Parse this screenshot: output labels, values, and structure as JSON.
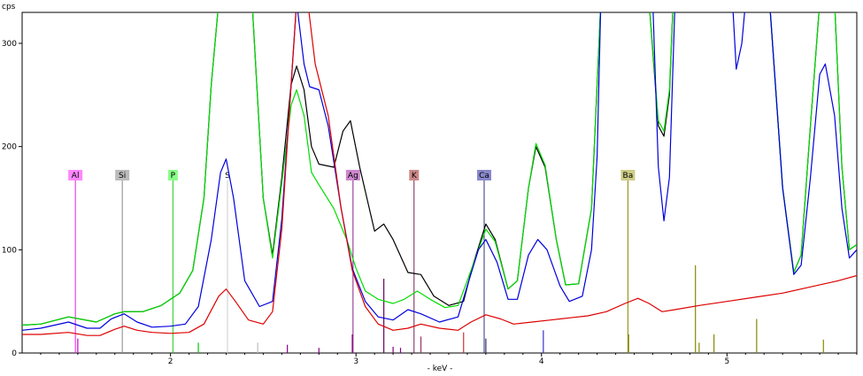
{
  "chart_data": {
    "type": "line",
    "ylabel": "cps",
    "xlabel": "- keV -",
    "xlim": [
      1.2,
      5.7
    ],
    "ylim": [
      0,
      330
    ],
    "x_ticks": [
      2,
      3,
      4,
      5
    ],
    "y_ticks": [
      0,
      100,
      200,
      300
    ],
    "grid": false,
    "series": [
      {
        "color": "#000000",
        "points": [
          [
            1.2,
            27
          ],
          [
            1.3,
            28
          ],
          [
            1.45,
            35
          ],
          [
            1.6,
            30
          ],
          [
            1.7,
            38
          ],
          [
            1.75,
            40
          ],
          [
            1.85,
            40
          ],
          [
            1.95,
            46
          ],
          [
            2.05,
            58
          ],
          [
            2.12,
            80
          ],
          [
            2.18,
            150
          ],
          [
            2.22,
            260
          ],
          [
            2.26,
            340
          ],
          [
            2.44,
            340
          ],
          [
            2.5,
            150
          ],
          [
            2.55,
            95
          ],
          [
            2.6,
            170
          ],
          [
            2.65,
            260
          ],
          [
            2.68,
            278
          ],
          [
            2.72,
            255
          ],
          [
            2.76,
            200
          ],
          [
            2.8,
            183
          ],
          [
            2.88,
            180
          ],
          [
            2.93,
            215
          ],
          [
            2.97,
            225
          ],
          [
            3.02,
            180
          ],
          [
            3.1,
            118
          ],
          [
            3.15,
            125
          ],
          [
            3.2,
            110
          ],
          [
            3.28,
            78
          ],
          [
            3.35,
            76
          ],
          [
            3.42,
            55
          ],
          [
            3.5,
            46
          ],
          [
            3.58,
            50
          ],
          [
            3.63,
            85
          ],
          [
            3.7,
            125
          ],
          [
            3.75,
            110
          ],
          [
            3.82,
            62
          ],
          [
            3.87,
            70
          ],
          [
            3.93,
            160
          ],
          [
            3.97,
            200
          ],
          [
            4.02,
            180
          ],
          [
            4.08,
            110
          ],
          [
            4.13,
            66
          ],
          [
            4.2,
            67
          ],
          [
            4.27,
            140
          ],
          [
            4.3,
            260
          ],
          [
            4.32,
            340
          ],
          [
            4.58,
            340
          ],
          [
            4.63,
            220
          ],
          [
            4.66,
            210
          ],
          [
            4.69,
            250
          ],
          [
            4.71,
            340
          ],
          [
            5.23,
            340
          ],
          [
            5.3,
            160
          ],
          [
            5.36,
            78
          ],
          [
            5.4,
            95
          ],
          [
            5.45,
            220
          ],
          [
            5.5,
            340
          ],
          [
            5.58,
            340
          ],
          [
            5.62,
            180
          ],
          [
            5.66,
            100
          ],
          [
            5.7,
            105
          ]
        ]
      },
      {
        "color": "#00dd00",
        "points": [
          [
            1.2,
            27
          ],
          [
            1.3,
            28
          ],
          [
            1.45,
            35
          ],
          [
            1.6,
            30
          ],
          [
            1.7,
            38
          ],
          [
            1.75,
            40
          ],
          [
            1.85,
            40
          ],
          [
            1.95,
            46
          ],
          [
            2.05,
            58
          ],
          [
            2.12,
            80
          ],
          [
            2.18,
            150
          ],
          [
            2.22,
            260
          ],
          [
            2.26,
            340
          ],
          [
            2.44,
            340
          ],
          [
            2.5,
            150
          ],
          [
            2.55,
            92
          ],
          [
            2.6,
            165
          ],
          [
            2.65,
            240
          ],
          [
            2.68,
            255
          ],
          [
            2.72,
            230
          ],
          [
            2.76,
            175
          ],
          [
            2.8,
            163
          ],
          [
            2.88,
            140
          ],
          [
            2.95,
            110
          ],
          [
            3.0,
            82
          ],
          [
            3.05,
            60
          ],
          [
            3.12,
            52
          ],
          [
            3.2,
            48
          ],
          [
            3.26,
            52
          ],
          [
            3.33,
            60
          ],
          [
            3.4,
            52
          ],
          [
            3.48,
            44
          ],
          [
            3.55,
            46
          ],
          [
            3.6,
            70
          ],
          [
            3.66,
            100
          ],
          [
            3.7,
            120
          ],
          [
            3.75,
            108
          ],
          [
            3.82,
            62
          ],
          [
            3.87,
            70
          ],
          [
            3.93,
            160
          ],
          [
            3.97,
            203
          ],
          [
            4.02,
            182
          ],
          [
            4.08,
            110
          ],
          [
            4.13,
            66
          ],
          [
            4.2,
            67
          ],
          [
            4.27,
            140
          ],
          [
            4.3,
            260
          ],
          [
            4.32,
            340
          ],
          [
            4.58,
            340
          ],
          [
            4.63,
            225
          ],
          [
            4.66,
            215
          ],
          [
            4.69,
            255
          ],
          [
            4.71,
            340
          ],
          [
            5.23,
            340
          ],
          [
            5.3,
            160
          ],
          [
            5.36,
            78
          ],
          [
            5.4,
            95
          ],
          [
            5.45,
            220
          ],
          [
            5.5,
            340
          ],
          [
            5.58,
            340
          ],
          [
            5.62,
            180
          ],
          [
            5.66,
            100
          ],
          [
            5.7,
            105
          ]
        ]
      },
      {
        "color": "#0000dd",
        "points": [
          [
            1.2,
            22
          ],
          [
            1.3,
            24
          ],
          [
            1.45,
            30
          ],
          [
            1.55,
            24
          ],
          [
            1.62,
            24
          ],
          [
            1.68,
            33
          ],
          [
            1.75,
            38
          ],
          [
            1.82,
            30
          ],
          [
            1.9,
            25
          ],
          [
            2.0,
            26
          ],
          [
            2.08,
            28
          ],
          [
            2.15,
            45
          ],
          [
            2.22,
            110
          ],
          [
            2.27,
            175
          ],
          [
            2.3,
            188
          ],
          [
            2.34,
            150
          ],
          [
            2.4,
            70
          ],
          [
            2.48,
            45
          ],
          [
            2.55,
            50
          ],
          [
            2.6,
            130
          ],
          [
            2.65,
            260
          ],
          [
            2.68,
            340
          ],
          [
            2.72,
            280
          ],
          [
            2.75,
            258
          ],
          [
            2.8,
            255
          ],
          [
            2.85,
            220
          ],
          [
            2.92,
            140
          ],
          [
            2.98,
            82
          ],
          [
            3.05,
            50
          ],
          [
            3.12,
            35
          ],
          [
            3.2,
            32
          ],
          [
            3.28,
            42
          ],
          [
            3.35,
            38
          ],
          [
            3.45,
            30
          ],
          [
            3.55,
            35
          ],
          [
            3.6,
            65
          ],
          [
            3.66,
            100
          ],
          [
            3.7,
            110
          ],
          [
            3.76,
            88
          ],
          [
            3.82,
            52
          ],
          [
            3.87,
            52
          ],
          [
            3.93,
            95
          ],
          [
            3.98,
            110
          ],
          [
            4.03,
            100
          ],
          [
            4.1,
            65
          ],
          [
            4.15,
            50
          ],
          [
            4.22,
            55
          ],
          [
            4.27,
            100
          ],
          [
            4.3,
            190
          ],
          [
            4.32,
            340
          ],
          [
            4.6,
            340
          ],
          [
            4.63,
            180
          ],
          [
            4.66,
            128
          ],
          [
            4.69,
            170
          ],
          [
            4.72,
            340
          ],
          [
            5.03,
            340
          ],
          [
            5.05,
            275
          ],
          [
            5.08,
            300
          ],
          [
            5.1,
            340
          ],
          [
            5.23,
            340
          ],
          [
            5.3,
            160
          ],
          [
            5.36,
            76
          ],
          [
            5.4,
            85
          ],
          [
            5.45,
            170
          ],
          [
            5.5,
            270
          ],
          [
            5.53,
            280
          ],
          [
            5.58,
            230
          ],
          [
            5.62,
            140
          ],
          [
            5.66,
            92
          ],
          [
            5.7,
            100
          ]
        ]
      },
      {
        "color": "#dd0000",
        "points": [
          [
            1.2,
            18
          ],
          [
            1.3,
            18
          ],
          [
            1.45,
            20
          ],
          [
            1.55,
            17
          ],
          [
            1.62,
            17
          ],
          [
            1.7,
            23
          ],
          [
            1.75,
            26
          ],
          [
            1.82,
            22
          ],
          [
            1.9,
            20
          ],
          [
            2.0,
            19
          ],
          [
            2.1,
            20
          ],
          [
            2.18,
            28
          ],
          [
            2.26,
            55
          ],
          [
            2.3,
            62
          ],
          [
            2.35,
            50
          ],
          [
            2.42,
            32
          ],
          [
            2.5,
            28
          ],
          [
            2.55,
            40
          ],
          [
            2.6,
            120
          ],
          [
            2.65,
            260
          ],
          [
            2.68,
            340
          ],
          [
            2.74,
            340
          ],
          [
            2.78,
            280
          ],
          [
            2.85,
            230
          ],
          [
            2.92,
            140
          ],
          [
            2.98,
            80
          ],
          [
            3.05,
            45
          ],
          [
            3.12,
            28
          ],
          [
            3.2,
            22
          ],
          [
            3.28,
            24
          ],
          [
            3.35,
            28
          ],
          [
            3.45,
            24
          ],
          [
            3.55,
            22
          ],
          [
            3.62,
            30
          ],
          [
            3.7,
            37
          ],
          [
            3.78,
            33
          ],
          [
            3.85,
            28
          ],
          [
            3.95,
            30
          ],
          [
            4.05,
            32
          ],
          [
            4.15,
            34
          ],
          [
            4.25,
            36
          ],
          [
            4.35,
            40
          ],
          [
            4.45,
            48
          ],
          [
            4.52,
            53
          ],
          [
            4.58,
            48
          ],
          [
            4.65,
            40
          ],
          [
            4.72,
            42
          ],
          [
            4.85,
            46
          ],
          [
            5.0,
            50
          ],
          [
            5.15,
            54
          ],
          [
            5.3,
            58
          ],
          [
            5.45,
            64
          ],
          [
            5.6,
            70
          ],
          [
            5.7,
            75
          ]
        ]
      }
    ],
    "element_markers": [
      {
        "element": "Al",
        "energy": 1.487,
        "color": "#dd22dd"
      },
      {
        "element": "Si",
        "energy": 1.74,
        "color": "#888888"
      },
      {
        "element": "P",
        "energy": 2.013,
        "color": "#22cc22"
      },
      {
        "element": "S",
        "energy": 2.307,
        "color": "#cccccc"
      },
      {
        "element": "Ag",
        "energy": 2.984,
        "color": "#882288"
      },
      {
        "element": "K",
        "energy": 3.313,
        "color": "#772255"
      },
      {
        "element": "Ca",
        "energy": 3.691,
        "color": "#333377"
      },
      {
        "element": "Ba",
        "energy": 4.466,
        "color": "#888800"
      }
    ],
    "label_colors": {
      "Al": "#ff88ff",
      "Si": "#bbbbbb",
      "P": "#88ff88",
      "S": "#ffffff",
      "Ag": "#cc88cc",
      "K": "#cc8888",
      "Ca": "#8888cc",
      "Ba": "#cccc88"
    },
    "marker_lines": [
      {
        "energy": 1.5,
        "height": 14,
        "color": "#cc00cc"
      },
      {
        "energy": 2.15,
        "height": 10,
        "color": "#00cc00"
      },
      {
        "energy": 2.47,
        "height": 10,
        "color": "#bbbbbb"
      },
      {
        "energy": 2.63,
        "height": 8,
        "color": "#880088"
      },
      {
        "energy": 2.8,
        "height": 5,
        "color": "#880088"
      },
      {
        "energy": 2.98,
        "height": 18,
        "color": "#880088"
      },
      {
        "energy": 3.15,
        "height": 72,
        "color": "#660066"
      },
      {
        "energy": 3.2,
        "height": 6,
        "color": "#880088"
      },
      {
        "energy": 3.24,
        "height": 5,
        "color": "#880088"
      },
      {
        "energy": 3.35,
        "height": 16,
        "color": "#993366"
      },
      {
        "energy": 3.58,
        "height": 20,
        "color": "#cc3333"
      },
      {
        "energy": 3.7,
        "height": 14,
        "color": "#333366"
      },
      {
        "energy": 4.01,
        "height": 22,
        "color": "#3333cc"
      },
      {
        "energy": 4.47,
        "height": 18,
        "color": "#888800"
      },
      {
        "energy": 4.83,
        "height": 85,
        "color": "#888800"
      },
      {
        "energy": 4.85,
        "height": 10,
        "color": "#888800"
      },
      {
        "energy": 4.93,
        "height": 18,
        "color": "#888800"
      },
      {
        "energy": 5.16,
        "height": 33,
        "color": "#888800"
      },
      {
        "energy": 5.52,
        "height": 13,
        "color": "#888800"
      }
    ]
  }
}
